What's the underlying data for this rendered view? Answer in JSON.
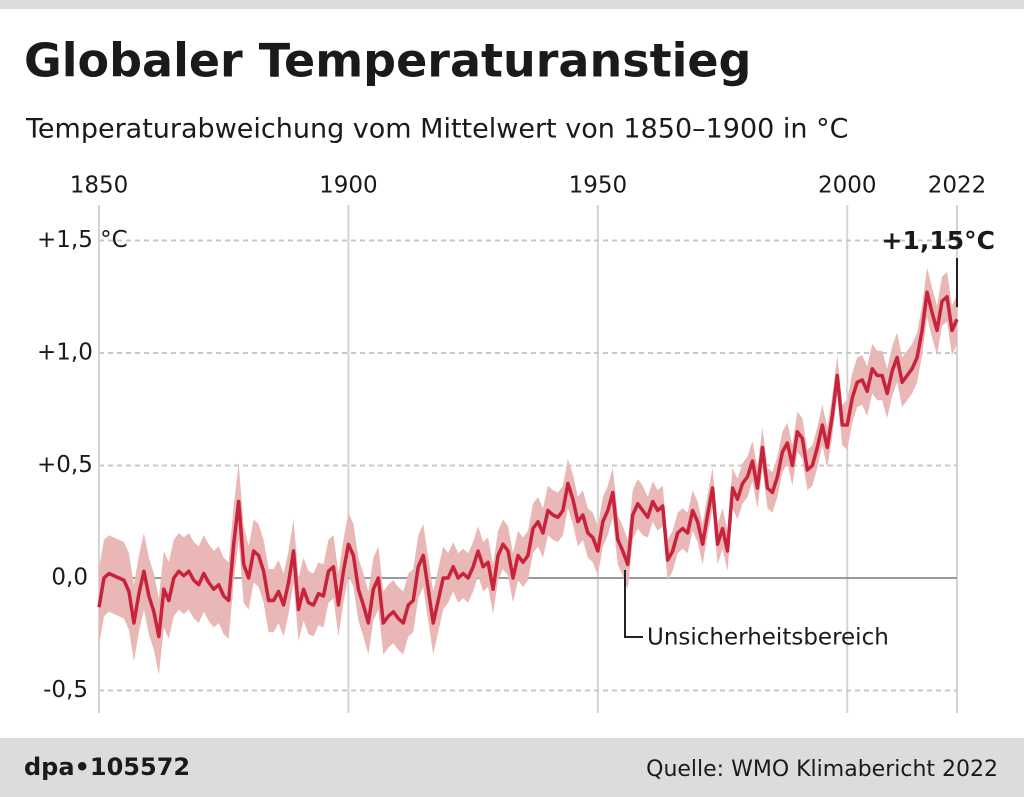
{
  "chart_data": {
    "type": "line",
    "title": "Globaler Temperaturanstieg",
    "subtitle": "Temperaturabweichung vom Mittelwert von 1850–1900 in °C",
    "x": [
      1850,
      1851,
      1852,
      1853,
      1854,
      1855,
      1856,
      1857,
      1858,
      1859,
      1860,
      1861,
      1862,
      1863,
      1864,
      1865,
      1866,
      1867,
      1868,
      1869,
      1870,
      1871,
      1872,
      1873,
      1874,
      1875,
      1876,
      1877,
      1878,
      1879,
      1880,
      1881,
      1882,
      1883,
      1884,
      1885,
      1886,
      1887,
      1888,
      1889,
      1890,
      1891,
      1892,
      1893,
      1894,
      1895,
      1896,
      1897,
      1898,
      1899,
      1900,
      1901,
      1902,
      1903,
      1904,
      1905,
      1906,
      1907,
      1908,
      1909,
      1910,
      1911,
      1912,
      1913,
      1914,
      1915,
      1916,
      1917,
      1918,
      1919,
      1920,
      1921,
      1922,
      1923,
      1924,
      1925,
      1926,
      1927,
      1928,
      1929,
      1930,
      1931,
      1932,
      1933,
      1934,
      1935,
      1936,
      1937,
      1938,
      1939,
      1940,
      1941,
      1942,
      1943,
      1944,
      1945,
      1946,
      1947,
      1948,
      1949,
      1950,
      1951,
      1952,
      1953,
      1954,
      1955,
      1956,
      1957,
      1958,
      1959,
      1960,
      1961,
      1962,
      1963,
      1964,
      1965,
      1966,
      1967,
      1968,
      1969,
      1970,
      1971,
      1972,
      1973,
      1974,
      1975,
      1976,
      1977,
      1978,
      1979,
      1980,
      1981,
      1982,
      1983,
      1984,
      1985,
      1986,
      1987,
      1988,
      1989,
      1990,
      1991,
      1992,
      1993,
      1994,
      1995,
      1996,
      1997,
      1998,
      1999,
      2000,
      2001,
      2002,
      2003,
      2004,
      2005,
      2006,
      2007,
      2008,
      2009,
      2010,
      2011,
      2012,
      2013,
      2014,
      2015,
      2016,
      2017,
      2018,
      2019,
      2020,
      2021,
      2022
    ],
    "values": [
      -0.13,
      0.0,
      0.02,
      0.01,
      0.0,
      -0.01,
      -0.06,
      -0.2,
      -0.07,
      0.03,
      -0.08,
      -0.15,
      -0.26,
      -0.05,
      -0.1,
      0.0,
      0.03,
      0.01,
      0.03,
      -0.01,
      -0.03,
      0.02,
      -0.02,
      -0.05,
      -0.03,
      -0.08,
      -0.1,
      0.15,
      0.34,
      0.06,
      0.0,
      0.12,
      0.1,
      0.03,
      -0.1,
      -0.1,
      -0.06,
      -0.12,
      -0.02,
      0.12,
      -0.14,
      -0.05,
      -0.11,
      -0.12,
      -0.07,
      -0.08,
      0.03,
      0.05,
      -0.12,
      0.03,
      0.15,
      0.1,
      -0.05,
      -0.12,
      -0.2,
      -0.05,
      0.0,
      -0.2,
      -0.17,
      -0.15,
      -0.18,
      -0.2,
      -0.12,
      -0.1,
      0.05,
      0.1,
      -0.05,
      -0.2,
      -0.1,
      0.0,
      0.0,
      0.05,
      0.0,
      0.02,
      0.0,
      0.05,
      0.12,
      0.05,
      0.07,
      -0.05,
      0.1,
      0.15,
      0.12,
      0.0,
      0.1,
      0.07,
      0.1,
      0.22,
      0.25,
      0.2,
      0.3,
      0.28,
      0.27,
      0.3,
      0.42,
      0.35,
      0.25,
      0.28,
      0.2,
      0.18,
      0.12,
      0.25,
      0.3,
      0.38,
      0.17,
      0.12,
      0.06,
      0.28,
      0.33,
      0.3,
      0.27,
      0.34,
      0.3,
      0.32,
      0.08,
      0.12,
      0.2,
      0.22,
      0.2,
      0.3,
      0.25,
      0.15,
      0.28,
      0.4,
      0.15,
      0.22,
      0.12,
      0.4,
      0.35,
      0.42,
      0.45,
      0.52,
      0.4,
      0.58,
      0.4,
      0.38,
      0.45,
      0.56,
      0.6,
      0.5,
      0.65,
      0.62,
      0.48,
      0.5,
      0.58,
      0.68,
      0.58,
      0.72,
      0.9,
      0.68,
      0.68,
      0.8,
      0.87,
      0.88,
      0.83,
      0.93,
      0.9,
      0.9,
      0.82,
      0.92,
      0.98,
      0.87,
      0.9,
      0.93,
      0.98,
      1.1,
      1.27,
      1.18,
      1.1,
      1.23,
      1.25,
      1.1,
      1.15
    ],
    "uncertainty": [
      0.17,
      0.17,
      0.17,
      0.17,
      0.17,
      0.17,
      0.17,
      0.17,
      0.17,
      0.17,
      0.17,
      0.17,
      0.17,
      0.17,
      0.17,
      0.17,
      0.17,
      0.17,
      0.17,
      0.17,
      0.17,
      0.17,
      0.17,
      0.17,
      0.17,
      0.17,
      0.17,
      0.17,
      0.17,
      0.17,
      0.14,
      0.14,
      0.14,
      0.14,
      0.14,
      0.14,
      0.14,
      0.14,
      0.14,
      0.14,
      0.14,
      0.14,
      0.14,
      0.14,
      0.14,
      0.14,
      0.14,
      0.14,
      0.14,
      0.14,
      0.14,
      0.14,
      0.14,
      0.14,
      0.14,
      0.14,
      0.14,
      0.14,
      0.14,
      0.14,
      0.14,
      0.14,
      0.14,
      0.14,
      0.14,
      0.14,
      0.14,
      0.14,
      0.14,
      0.14,
      0.11,
      0.11,
      0.11,
      0.11,
      0.11,
      0.11,
      0.11,
      0.11,
      0.11,
      0.11,
      0.11,
      0.11,
      0.11,
      0.11,
      0.11,
      0.11,
      0.11,
      0.11,
      0.11,
      0.11,
      0.11,
      0.11,
      0.11,
      0.11,
      0.11,
      0.11,
      0.11,
      0.11,
      0.11,
      0.11,
      0.11,
      0.11,
      0.11,
      0.11,
      0.11,
      0.11,
      0.11,
      0.11,
      0.11,
      0.11,
      0.09,
      0.09,
      0.09,
      0.09,
      0.09,
      0.09,
      0.09,
      0.09,
      0.09,
      0.09,
      0.09,
      0.09,
      0.09,
      0.09,
      0.09,
      0.09,
      0.09,
      0.09,
      0.09,
      0.09,
      0.09,
      0.09,
      0.09,
      0.09,
      0.09,
      0.09,
      0.09,
      0.09,
      0.09,
      0.09,
      0.09,
      0.09,
      0.09,
      0.09,
      0.09,
      0.09,
      0.09,
      0.09,
      0.09,
      0.09,
      0.11,
      0.11,
      0.11,
      0.11,
      0.11,
      0.11,
      0.11,
      0.11,
      0.11,
      0.11,
      0.11,
      0.11,
      0.11,
      0.11,
      0.11,
      0.11,
      0.11,
      0.11,
      0.11,
      0.11,
      0.11,
      0.11,
      0.11
    ],
    "color": "#c8233c",
    "band_color": "#e9b7b5",
    "xlim": [
      1850,
      2022
    ],
    "xticks": [
      1850,
      1900,
      1950,
      2000,
      2022
    ],
    "ylim": [
      -0.6,
      1.6
    ],
    "yticks": [
      {
        "value": -0.5,
        "label": "-0,5"
      },
      {
        "value": 0,
        "label": "0,0"
      },
      {
        "value": 0.5,
        "label": "+0,5"
      },
      {
        "value": 1.0,
        "label": "+1,0"
      },
      {
        "value": 1.5,
        "label": "+1,5 °C"
      }
    ],
    "grid": true,
    "annotations": [
      "+1,15°C",
      "Unsicherheitsbereich"
    ],
    "footer_left": "dpa•105572",
    "source": "Quelle: WMO Klimabericht 2022"
  }
}
